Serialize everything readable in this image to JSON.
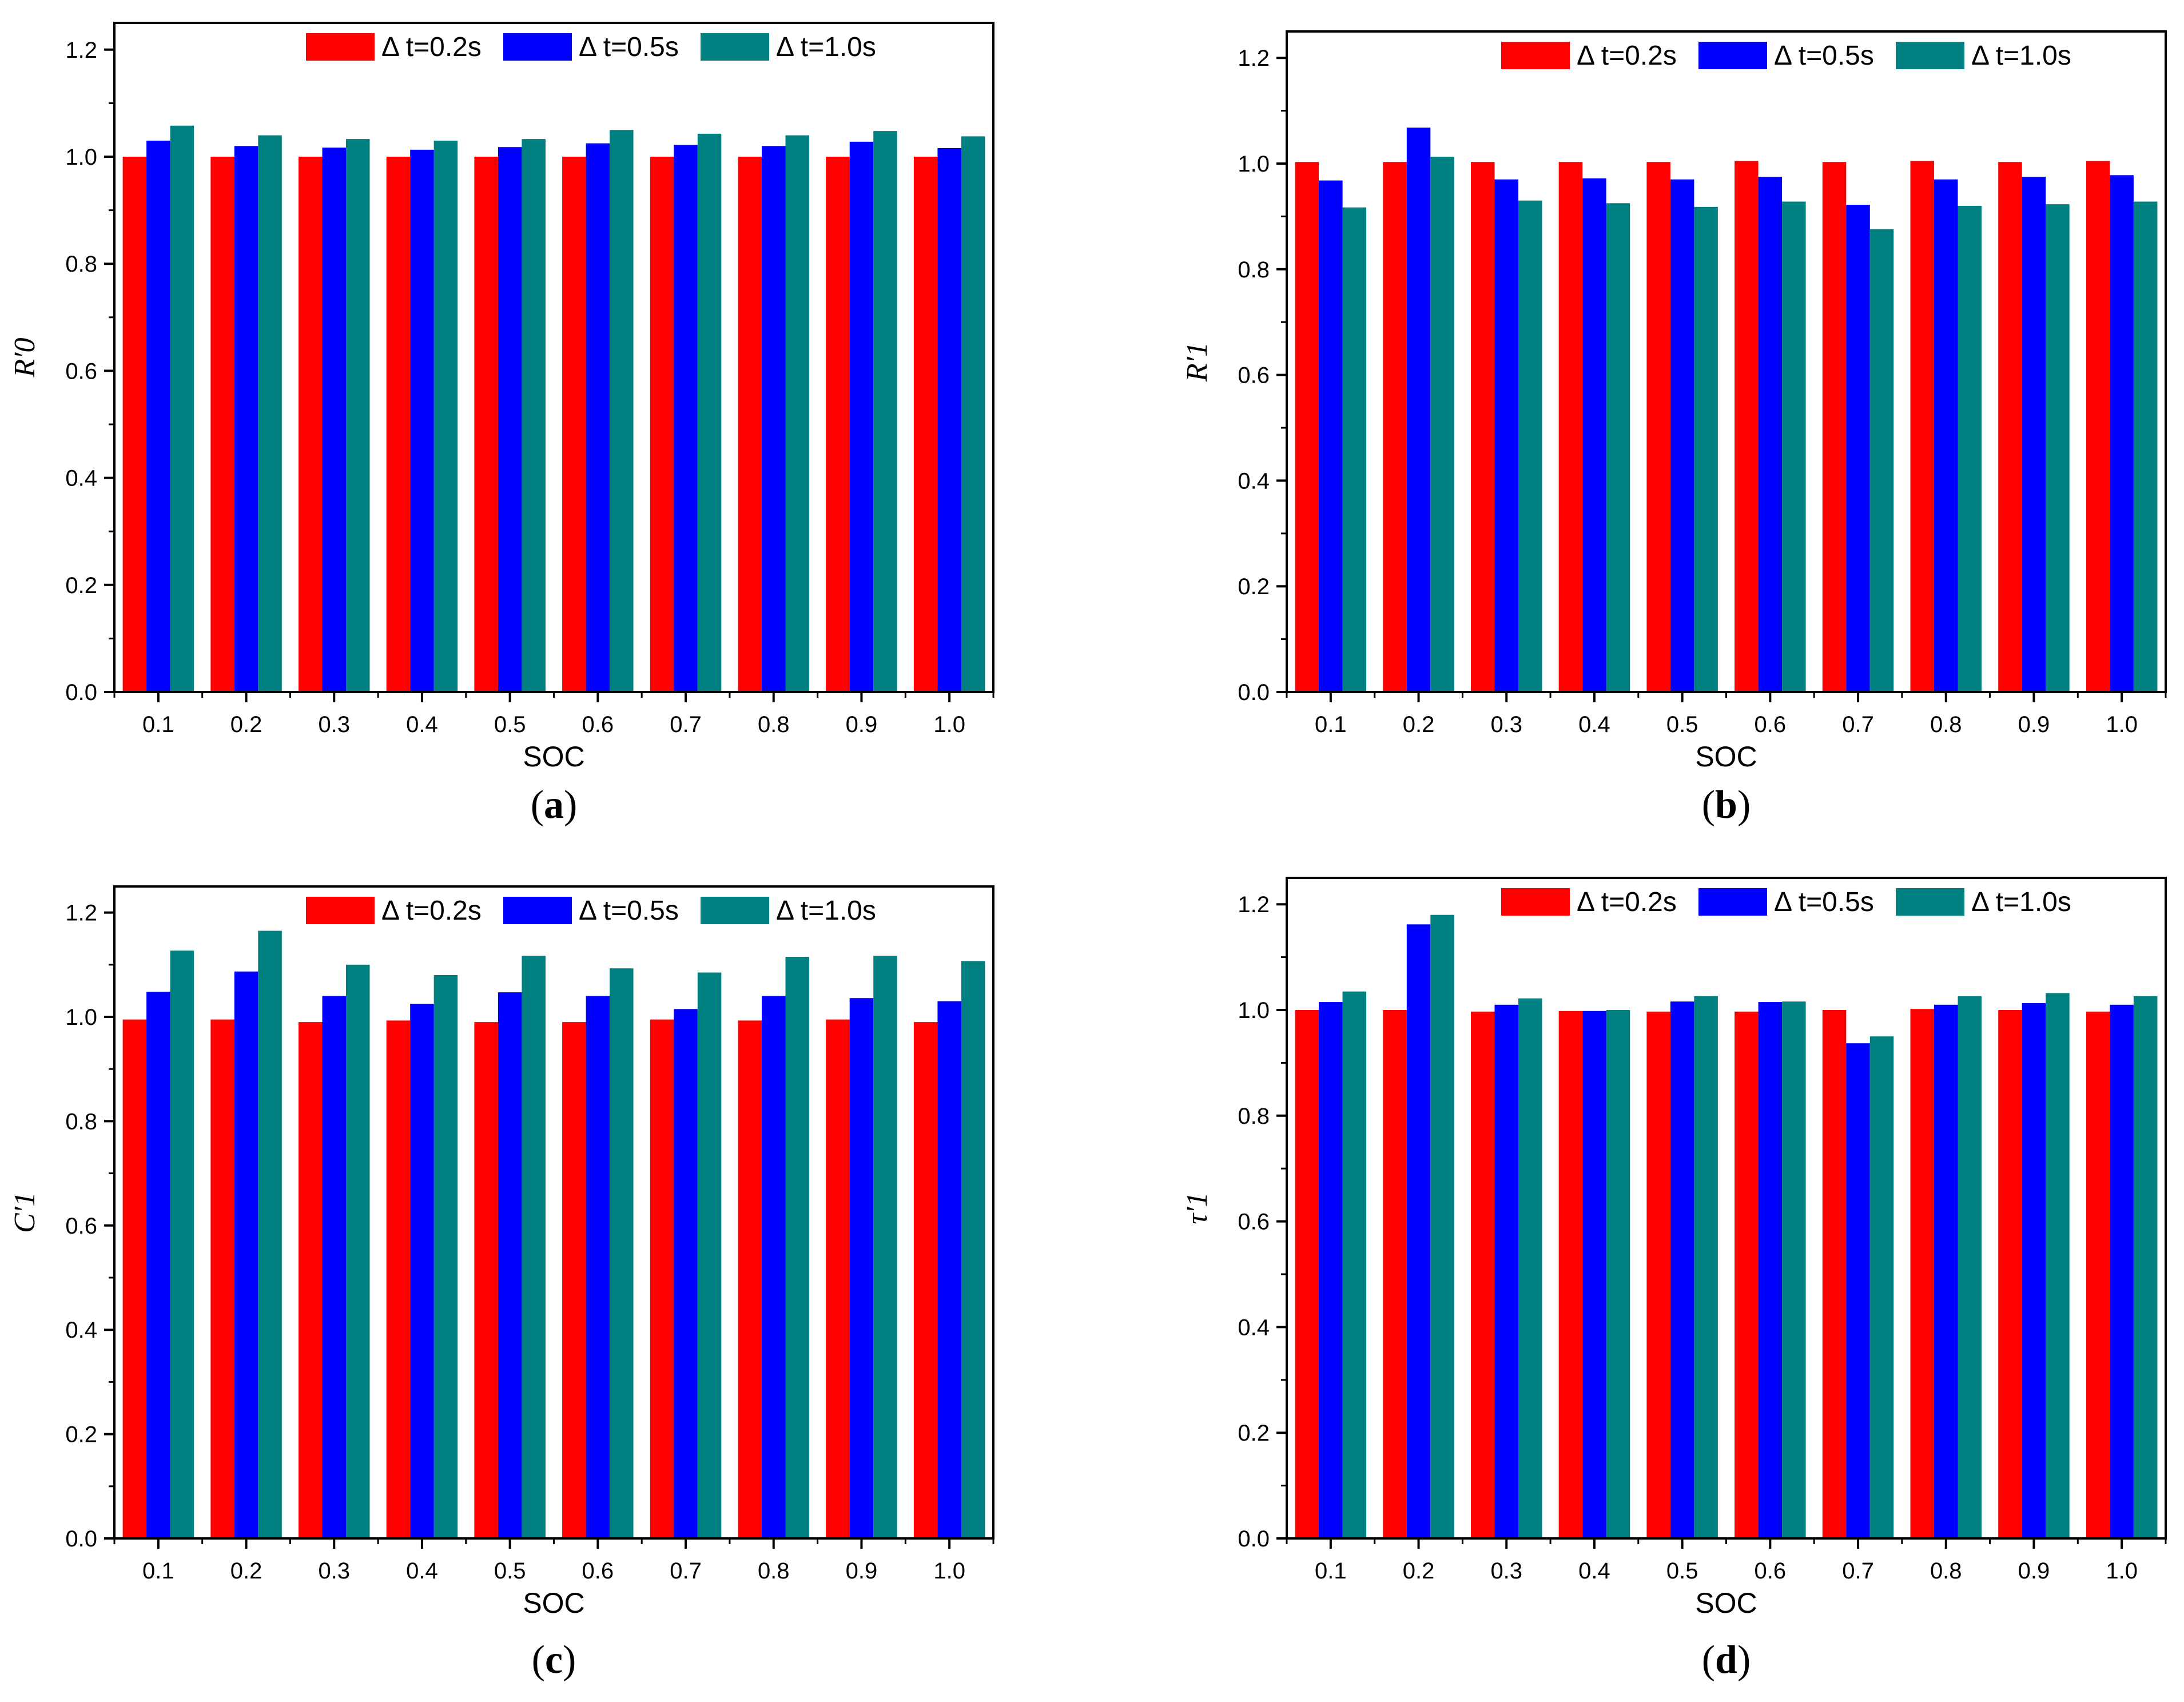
{
  "colors": {
    "series": [
      "#ff0000",
      "#0000ff",
      "#008080"
    ],
    "axis": "#000000",
    "background": "#ffffff"
  },
  "legend_position": "top",
  "chart_data": [
    {
      "type": "bar",
      "panel": "a",
      "panel_open": "(",
      "panel_close": ")",
      "xlabel": "SOC",
      "ylabel": "R′0",
      "ylim": [
        0,
        1.25
      ],
      "yticks": [
        "0.0",
        "0.2",
        "0.4",
        "0.6",
        "0.8",
        "1.0",
        "1.2"
      ],
      "categories": [
        "0.1",
        "0.2",
        "0.3",
        "0.4",
        "0.5",
        "0.6",
        "0.7",
        "0.8",
        "0.9",
        "1.0"
      ],
      "series": [
        {
          "name": "Δ t=0.2s",
          "values": [
            1.0,
            1.0,
            1.0,
            1.0,
            1.0,
            1.0,
            1.0,
            1.0,
            1.0,
            1.0
          ]
        },
        {
          "name": "Δ t=0.5s",
          "values": [
            1.03,
            1.02,
            1.017,
            1.013,
            1.018,
            1.025,
            1.022,
            1.02,
            1.028,
            1.016
          ]
        },
        {
          "name": "Δ t=1.0s",
          "values": [
            1.058,
            1.04,
            1.033,
            1.03,
            1.033,
            1.05,
            1.043,
            1.04,
            1.048,
            1.038
          ]
        }
      ]
    },
    {
      "type": "bar",
      "panel": "b",
      "panel_open": "(",
      "panel_close": ")",
      "xlabel": "SOC",
      "ylabel": "R′1",
      "ylim": [
        0,
        1.25
      ],
      "yticks": [
        "0.0",
        "0.2",
        "0.4",
        "0.6",
        "0.8",
        "1.0",
        "1.2"
      ],
      "categories": [
        "0.1",
        "0.2",
        "0.3",
        "0.4",
        "0.5",
        "0.6",
        "0.7",
        "0.8",
        "0.9",
        "1.0"
      ],
      "series": [
        {
          "name": "Δ t=0.2s",
          "values": [
            1.003,
            1.003,
            1.003,
            1.003,
            1.003,
            1.005,
            1.003,
            1.005,
            1.003,
            1.005
          ]
        },
        {
          "name": "Δ t=0.5s",
          "values": [
            0.968,
            1.068,
            0.97,
            0.972,
            0.97,
            0.975,
            0.922,
            0.97,
            0.975,
            0.978
          ]
        },
        {
          "name": "Δ t=1.0s",
          "values": [
            0.917,
            1.013,
            0.93,
            0.925,
            0.918,
            0.928,
            0.876,
            0.92,
            0.923,
            0.928
          ]
        }
      ]
    },
    {
      "type": "bar",
      "panel": "c",
      "panel_open": "(",
      "panel_close": ")",
      "xlabel": "SOC",
      "ylabel": "C′1",
      "ylim": [
        0,
        1.25
      ],
      "yticks": [
        "0.0",
        "0.2",
        "0.4",
        "0.6",
        "0.8",
        "1.0",
        "1.2"
      ],
      "categories": [
        "0.1",
        "0.2",
        "0.3",
        "0.4",
        "0.5",
        "0.6",
        "0.7",
        "0.8",
        "0.9",
        "1.0"
      ],
      "series": [
        {
          "name": "Δ t=0.2s",
          "values": [
            0.995,
            0.995,
            0.99,
            0.993,
            0.99,
            0.99,
            0.995,
            0.993,
            0.995,
            0.99
          ]
        },
        {
          "name": "Δ t=0.5s",
          "values": [
            1.048,
            1.087,
            1.04,
            1.025,
            1.047,
            1.04,
            1.015,
            1.04,
            1.036,
            1.03
          ]
        },
        {
          "name": "Δ t=1.0s",
          "values": [
            1.127,
            1.165,
            1.1,
            1.08,
            1.117,
            1.093,
            1.085,
            1.115,
            1.117,
            1.107
          ]
        }
      ]
    },
    {
      "type": "bar",
      "panel": "d",
      "panel_open": "(",
      "panel_close": ")",
      "xlabel": "SOC",
      "ylabel": "τ′1",
      "ylim": [
        0,
        1.25
      ],
      "yticks": [
        "0.0",
        "0.2",
        "0.4",
        "0.6",
        "0.8",
        "1.0",
        "1.2"
      ],
      "categories": [
        "0.1",
        "0.2",
        "0.3",
        "0.4",
        "0.5",
        "0.6",
        "0.7",
        "0.8",
        "0.9",
        "1.0"
      ],
      "series": [
        {
          "name": "Δ t=0.2s",
          "values": [
            1.0,
            1.0,
            0.997,
            0.998,
            0.997,
            0.997,
            1.0,
            1.002,
            1.0,
            0.997
          ]
        },
        {
          "name": "Δ t=0.5s",
          "values": [
            1.015,
            1.162,
            1.01,
            0.998,
            1.016,
            1.015,
            0.937,
            1.01,
            1.013,
            1.01
          ]
        },
        {
          "name": "Δ t=1.0s",
          "values": [
            1.035,
            1.18,
            1.022,
            1.0,
            1.026,
            1.016,
            0.95,
            1.026,
            1.032,
            1.026
          ]
        }
      ]
    }
  ]
}
